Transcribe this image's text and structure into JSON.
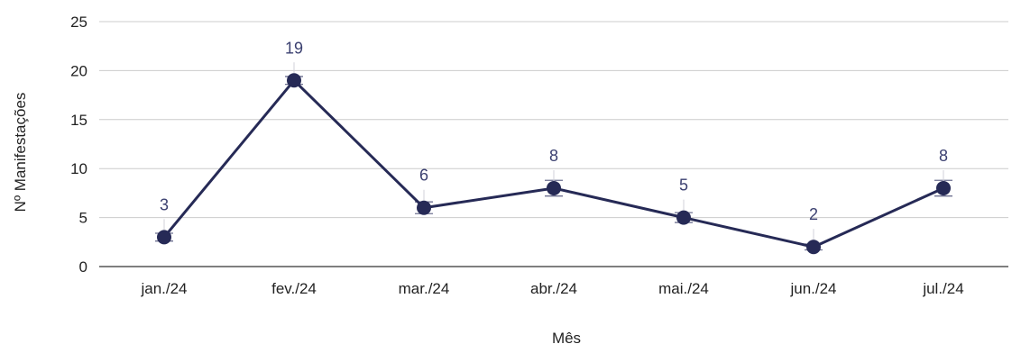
{
  "chart_data": {
    "type": "line",
    "categories": [
      "jan./24",
      "fev./24",
      "mar./24",
      "abr./24",
      "mai./24",
      "jun./24",
      "jul./24"
    ],
    "series": [
      {
        "values": [
          3,
          19,
          6,
          8,
          5,
          2,
          8
        ]
      }
    ],
    "data_labels": [
      "3",
      "19",
      "6",
      "8",
      "5",
      "2",
      "8"
    ],
    "xlabel": "Mês",
    "ylabel": "Nº Manifestações",
    "ylim": [
      0,
      25
    ],
    "yticks": [
      0,
      5,
      10,
      15,
      20,
      25
    ],
    "ytick_labels": [
      "0",
      "5",
      "10",
      "15",
      "20",
      "25"
    ],
    "grid": true,
    "error_bars": [
      0.4,
      0.4,
      0.6,
      0.8,
      0.5,
      0.3,
      0.8
    ],
    "colors": {
      "line": "#262a56",
      "marker": "#262a56",
      "label": "#3b4070",
      "grid": "#cccccc",
      "axis": "#333333",
      "error": "#6e7090"
    }
  }
}
